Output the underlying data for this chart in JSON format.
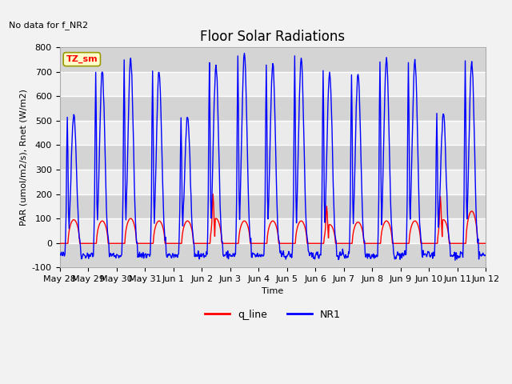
{
  "title": "Floor Solar Radiations",
  "no_data_text": "No data for f_NR2",
  "tz_label": "TZ_sm",
  "xlabel": "Time",
  "ylabel": "PAR (umol/m2/s), Rnet (W/m2)",
  "ylim": [
    -100,
    800
  ],
  "yticks": [
    -100,
    0,
    100,
    200,
    300,
    400,
    500,
    600,
    700,
    800
  ],
  "xtick_labels": [
    "May 28",
    "May 29",
    "May 30",
    "May 31",
    "Jun 1",
    "Jun 2",
    "Jun 3",
    "Jun 4",
    "Jun 5",
    "Jun 6",
    "Jun 7",
    "Jun 8",
    "Jun 9",
    "Jun 10",
    "Jun 11",
    "Jun 12"
  ],
  "line_red_color": "#ff0000",
  "line_blue_color": "#0000ff",
  "legend_labels": [
    "q_line",
    "NR1"
  ],
  "plot_bg_color": "#e8e8e8",
  "band_color_dark": "#d4d4d4",
  "band_color_light": "#ebebeb",
  "title_fontsize": 12,
  "label_fontsize": 8,
  "tick_fontsize": 8
}
